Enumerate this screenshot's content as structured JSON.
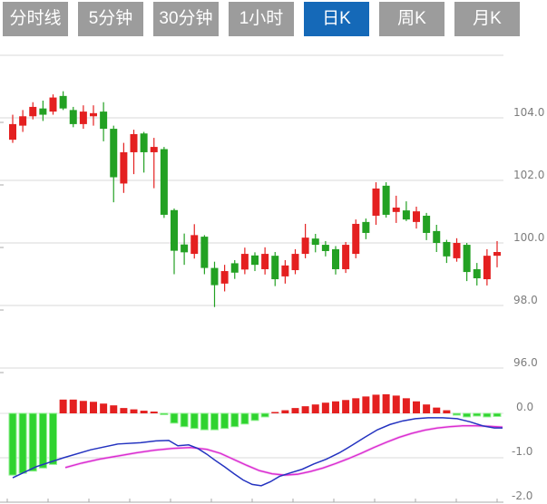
{
  "tabbar": {
    "tabs": [
      {
        "label": "分时线",
        "active": false
      },
      {
        "label": "5分钟",
        "active": false
      },
      {
        "label": "30分钟",
        "active": false
      },
      {
        "label": "1小时",
        "active": false
      },
      {
        "label": "日K",
        "active": true
      },
      {
        "label": "周K",
        "active": false
      },
      {
        "label": "月K",
        "active": false
      }
    ]
  },
  "chart_data": {
    "type": "candlestick",
    "title": "",
    "legend_position": "none",
    "grid": true,
    "convention": "red = up, green = down",
    "price_axis": {
      "side": "right",
      "ticks": [
        {
          "label": "104.0",
          "price": 104.0
        },
        {
          "label": "102.0",
          "price": 102.0
        },
        {
          "label": "100.0",
          "price": 100.0
        },
        {
          "label": "98.0",
          "price": 98.0
        },
        {
          "label": "96.0",
          "price": 96.0
        }
      ],
      "unlabeled_gridlines": [
        106.0
      ],
      "range": [
        95.5,
        106.0
      ]
    },
    "candles_ohlc": [
      [
        103.3,
        104.1,
        103.2,
        103.8
      ],
      [
        103.75,
        104.25,
        103.55,
        104.05
      ],
      [
        104.05,
        104.5,
        103.95,
        104.35
      ],
      [
        104.3,
        104.55,
        103.9,
        104.1
      ],
      [
        104.2,
        104.75,
        104.1,
        104.65
      ],
      [
        104.7,
        104.85,
        104.25,
        104.3
      ],
      [
        104.25,
        104.35,
        103.7,
        103.8
      ],
      [
        103.8,
        104.4,
        103.65,
        104.2
      ],
      [
        104.05,
        104.4,
        103.75,
        104.15
      ],
      [
        104.2,
        104.5,
        103.25,
        103.65
      ],
      [
        103.65,
        103.75,
        101.3,
        102.1
      ],
      [
        101.9,
        103.2,
        101.6,
        102.9
      ],
      [
        102.9,
        103.62,
        102.2,
        103.48
      ],
      [
        103.5,
        103.55,
        102.25,
        102.9
      ],
      [
        102.9,
        103.36,
        101.75,
        103.07
      ],
      [
        103.0,
        103.07,
        100.8,
        100.9
      ],
      [
        101.05,
        101.1,
        99.0,
        99.75
      ],
      [
        99.95,
        100.3,
        99.3,
        99.7
      ],
      [
        99.65,
        100.6,
        99.5,
        100.25
      ],
      [
        100.2,
        100.25,
        99.0,
        99.2
      ],
      [
        99.2,
        99.4,
        97.95,
        98.65
      ],
      [
        98.7,
        99.3,
        98.45,
        99.1
      ],
      [
        99.35,
        99.45,
        98.85,
        99.05
      ],
      [
        99.15,
        99.85,
        99.0,
        99.65
      ],
      [
        99.6,
        99.7,
        99.1,
        99.3
      ],
      [
        99.16,
        99.86,
        98.99,
        99.65
      ],
      [
        99.59,
        99.71,
        98.62,
        98.84
      ],
      [
        98.93,
        99.45,
        98.7,
        99.28
      ],
      [
        99.13,
        99.8,
        99.0,
        99.65
      ],
      [
        99.65,
        100.61,
        99.51,
        100.17
      ],
      [
        100.14,
        100.29,
        99.7,
        99.94
      ],
      [
        99.94,
        100.06,
        99.57,
        99.74
      ],
      [
        99.8,
        99.9,
        98.99,
        99.16
      ],
      [
        99.16,
        100.03,
        99.04,
        99.94
      ],
      [
        99.65,
        100.75,
        99.51,
        100.61
      ],
      [
        100.67,
        100.78,
        100.12,
        100.32
      ],
      [
        100.87,
        101.94,
        100.58,
        101.74
      ],
      [
        101.83,
        101.94,
        100.81,
        100.9
      ],
      [
        100.99,
        101.51,
        100.64,
        101.13
      ],
      [
        101.04,
        101.33,
        100.7,
        100.75
      ],
      [
        100.67,
        101.16,
        100.46,
        101.01
      ],
      [
        100.87,
        100.96,
        100.09,
        100.32
      ],
      [
        100.38,
        100.58,
        99.71,
        100.0
      ],
      [
        100.03,
        100.1,
        99.36,
        99.57
      ],
      [
        99.51,
        100.15,
        99.4,
        100.0
      ],
      [
        99.94,
        100.0,
        98.78,
        99.07
      ],
      [
        99.16,
        99.36,
        98.64,
        98.87
      ],
      [
        98.84,
        99.8,
        98.64,
        99.59
      ],
      [
        99.59,
        100.06,
        99.22,
        99.71
      ]
    ],
    "macd_panel": {
      "axis_ticks": [
        {
          "label": "0.0",
          "value": 0.0
        },
        {
          "label": "-1.0",
          "value": -1.0
        },
        {
          "label": "-2.0",
          "value": -2.0
        }
      ],
      "range": [
        -2.0,
        0.5
      ],
      "histogram": [
        -1.39,
        -1.35,
        -1.3,
        -1.23,
        -1.15,
        0.31,
        0.31,
        0.28,
        0.26,
        0.22,
        0.18,
        0.12,
        0.09,
        0.06,
        0.04,
        -0.03,
        -0.22,
        -0.3,
        -0.34,
        -0.37,
        -0.37,
        -0.34,
        -0.3,
        -0.24,
        -0.16,
        -0.08,
        0.03,
        0.07,
        0.12,
        0.16,
        0.2,
        0.24,
        0.27,
        0.3,
        0.34,
        0.38,
        0.42,
        0.43,
        0.4,
        0.34,
        0.27,
        0.2,
        0.13,
        0.07,
        -0.04,
        -0.08,
        -0.06,
        -0.08,
        -0.07
      ],
      "dif_line": [
        [
          14,
          -1.45
        ],
        [
          40,
          -1.2
        ],
        [
          70,
          -1.0
        ],
        [
          100,
          -0.82
        ],
        [
          130,
          -0.69
        ],
        [
          155,
          -0.66
        ],
        [
          172,
          -0.62
        ],
        [
          186,
          -0.61
        ],
        [
          196,
          -0.73
        ],
        [
          208,
          -0.71
        ],
        [
          218,
          -0.79
        ],
        [
          228,
          -0.92
        ],
        [
          238,
          -1.07
        ],
        [
          248,
          -1.21
        ],
        [
          258,
          -1.36
        ],
        [
          268,
          -1.5
        ],
        [
          278,
          -1.6
        ],
        [
          288,
          -1.63
        ],
        [
          298,
          -1.54
        ],
        [
          308,
          -1.42
        ],
        [
          320,
          -1.34
        ],
        [
          333,
          -1.26
        ],
        [
          346,
          -1.14
        ],
        [
          360,
          -1.03
        ],
        [
          374,
          -0.89
        ],
        [
          388,
          -0.72
        ],
        [
          402,
          -0.54
        ],
        [
          416,
          -0.37
        ],
        [
          430,
          -0.25
        ],
        [
          444,
          -0.17
        ],
        [
          458,
          -0.12
        ],
        [
          472,
          -0.1
        ],
        [
          488,
          -0.1
        ],
        [
          504,
          -0.12
        ],
        [
          518,
          -0.19
        ],
        [
          532,
          -0.28
        ],
        [
          545,
          -0.33
        ],
        [
          554,
          -0.33
        ]
      ],
      "dea_line": [
        [
          72,
          -1.22
        ],
        [
          90,
          -1.12
        ],
        [
          110,
          -1.03
        ],
        [
          130,
          -0.96
        ],
        [
          150,
          -0.89
        ],
        [
          170,
          -0.83
        ],
        [
          190,
          -0.79
        ],
        [
          210,
          -0.77
        ],
        [
          228,
          -0.81
        ],
        [
          243,
          -0.9
        ],
        [
          258,
          -1.04
        ],
        [
          272,
          -1.17
        ],
        [
          286,
          -1.29
        ],
        [
          300,
          -1.36
        ],
        [
          314,
          -1.39
        ],
        [
          328,
          -1.37
        ],
        [
          342,
          -1.31
        ],
        [
          356,
          -1.23
        ],
        [
          370,
          -1.13
        ],
        [
          384,
          -1.02
        ],
        [
          398,
          -0.9
        ],
        [
          412,
          -0.77
        ],
        [
          426,
          -0.65
        ],
        [
          440,
          -0.54
        ],
        [
          454,
          -0.45
        ],
        [
          468,
          -0.38
        ],
        [
          482,
          -0.33
        ],
        [
          496,
          -0.3
        ],
        [
          510,
          -0.28
        ],
        [
          524,
          -0.28
        ],
        [
          538,
          -0.29
        ],
        [
          554,
          -0.31
        ]
      ]
    },
    "colors": {
      "up": "#e42020",
      "down": "#23a123",
      "hist_up": "#e42020",
      "hist_down": "#2fd32f",
      "hist_down_glow": "#8fef8f",
      "dif": "#2433c0",
      "dea": "#d92bd0",
      "dea_halo": "#f2a6ec",
      "grid": "#d9d9d9",
      "axis_line": "#aaaaaa",
      "axis_text": "#7d7d7d",
      "tab_bg": "#9c9c9c",
      "tab_active_bg": "#1569b8",
      "tab_text": "#ffffff"
    }
  }
}
